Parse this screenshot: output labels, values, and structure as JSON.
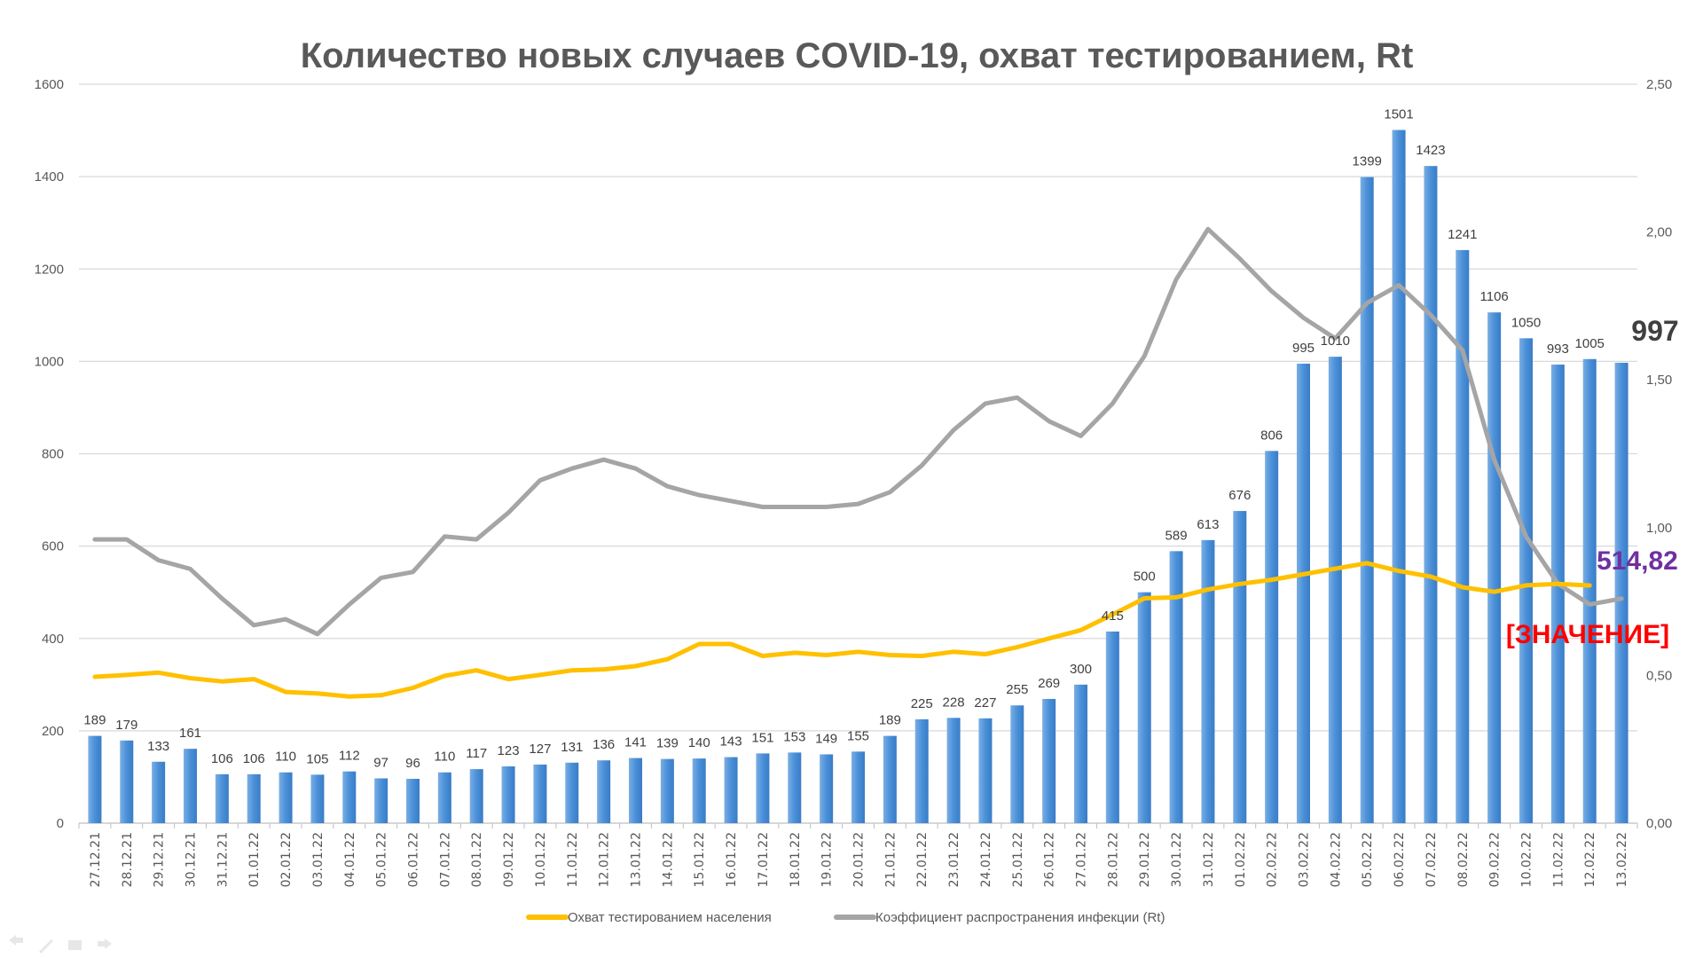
{
  "chart_data": {
    "type": "bar+line",
    "title": "Количество новых случаев COVID-19, охват тестированием, Rt",
    "categories": [
      "27.12.21",
      "28.12.21",
      "29.12.21",
      "30.12.21",
      "31.12.21",
      "01.01.22",
      "02.01.22",
      "03.01.22",
      "04.01.22",
      "05.01.22",
      "06.01.22",
      "07.01.22",
      "08.01.22",
      "09.01.22",
      "10.01.22",
      "11.01.22",
      "12.01.22",
      "13.01.22",
      "14.01.22",
      "15.01.22",
      "16.01.22",
      "17.01.22",
      "18.01.22",
      "19.01.22",
      "20.01.22",
      "21.01.22",
      "22.01.22",
      "23.01.22",
      "24.01.22",
      "25.01.22",
      "26.01.22",
      "27.01.22",
      "28.01.22",
      "29.01.22",
      "30.01.22",
      "31.01.22",
      "01.02.22",
      "02.02.22",
      "03.02.22",
      "04.02.22",
      "05.02.22",
      "06.02.22",
      "07.02.22",
      "08.02.22",
      "09.02.22",
      "10.02.22",
      "11.02.22",
      "12.02.22",
      "13.02.22"
    ],
    "y_left": {
      "range": [
        0,
        1600
      ],
      "ticks": [
        "0",
        "200",
        "400",
        "600",
        "800",
        "1000",
        "1200",
        "1400",
        "1600"
      ]
    },
    "y_right": {
      "range": [
        0,
        2.5
      ],
      "ticks": [
        "0,00",
        "0,50",
        "1,00",
        "1,50",
        "2,00",
        "2,50"
      ]
    },
    "grid": true,
    "legend_placement": "bottom",
    "series": [
      {
        "kind": "bar",
        "axis": "left",
        "color": "#4A90D9",
        "values": [
          189,
          179,
          133,
          161,
          106,
          106,
          110,
          105,
          112,
          97,
          96,
          110,
          117,
          123,
          127,
          131,
          136,
          141,
          139,
          140,
          143,
          151,
          153,
          149,
          155,
          189,
          225,
          228,
          227,
          255,
          269,
          300,
          415,
          500,
          589,
          613,
          676,
          806,
          995,
          1010,
          1399,
          1501,
          1423,
          1241,
          1106,
          1050,
          993,
          1005,
          997
        ],
        "labels": [
          "189",
          "179",
          "133",
          "161",
          "106",
          "106",
          "110",
          "105",
          "112",
          "97",
          "96",
          "110",
          "117",
          "123",
          "127",
          "131",
          "136",
          "141",
          "139",
          "140",
          "143",
          "151",
          "153",
          "149",
          "155",
          "189",
          "225",
          "228",
          "227",
          "255",
          "269",
          "300",
          "415",
          "500",
          "589",
          "613",
          "676",
          "806",
          "995",
          "1010",
          "1399",
          "1501",
          "1423",
          "1241",
          "1106",
          "1050",
          "993",
          "1005",
          ""
        ]
      },
      {
        "kind": "line",
        "axis": "left",
        "name": "Охват тестированием населения",
        "color": "#FFC000",
        "values": [
          317,
          321,
          326,
          314,
          307,
          312,
          284,
          281,
          274,
          277,
          293,
          319,
          331,
          312,
          321,
          331,
          333,
          340,
          355,
          388,
          388,
          362,
          369,
          364,
          371,
          364,
          362,
          371,
          366,
          381,
          400,
          418,
          452,
          487,
          489,
          506,
          518,
          527,
          539,
          551,
          563,
          546,
          534,
          511,
          501,
          515,
          518,
          514.82,
          null
        ]
      },
      {
        "kind": "line",
        "axis": "right",
        "name": "Коэффициент распространения инфекции (Rt)",
        "color": "#A5A5A5",
        "values": [
          0.96,
          0.96,
          0.89,
          0.86,
          0.76,
          0.67,
          0.69,
          0.64,
          0.74,
          0.83,
          0.85,
          0.97,
          0.96,
          1.05,
          1.16,
          1.2,
          1.23,
          1.2,
          1.14,
          1.11,
          1.09,
          1.07,
          1.07,
          1.07,
          1.08,
          1.12,
          1.21,
          1.33,
          1.42,
          1.44,
          1.36,
          1.31,
          1.42,
          1.58,
          1.84,
          2.01,
          1.91,
          1.8,
          1.71,
          1.64,
          1.76,
          1.82,
          1.72,
          1.6,
          1.23,
          0.97,
          0.81,
          0.74,
          0.76
        ]
      }
    ],
    "annotations": {
      "last_bar": "997",
      "last_coverage": "514,82",
      "placeholder": "[ЗНАЧЕНИЕ]",
      "last_bar_color": "#404040",
      "last_coverage_color": "#7030A0",
      "placeholder_color": "#FF0000"
    }
  },
  "controls": [
    "back-icon",
    "pen-icon",
    "menu-icon",
    "forward-icon"
  ]
}
